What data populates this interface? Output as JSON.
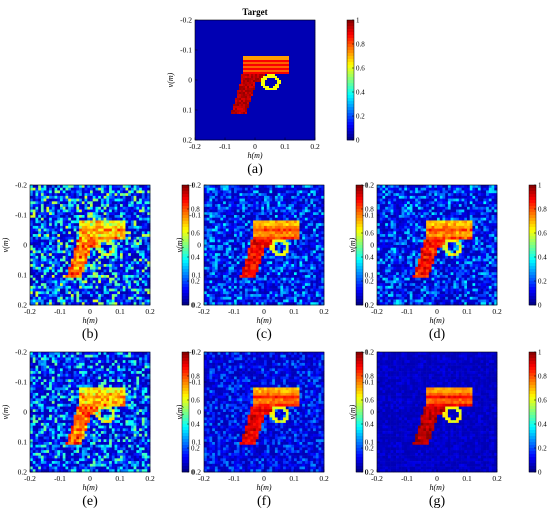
{
  "figure": {
    "panels": [
      {
        "id": "a",
        "caption": "(a)",
        "title": "Target",
        "noise": 0.0,
        "signal": 1.0,
        "clean": true
      },
      {
        "id": "b",
        "caption": "(b)",
        "title": "",
        "noise": 0.55,
        "signal": 0.55,
        "clean": false
      },
      {
        "id": "c",
        "caption": "(c)",
        "title": "",
        "noise": 0.32,
        "signal": 0.85,
        "clean": false
      },
      {
        "id": "d",
        "caption": "(d)",
        "title": "",
        "noise": 0.32,
        "signal": 0.8,
        "clean": false
      },
      {
        "id": "e",
        "caption": "(e)",
        "title": "",
        "noise": 0.45,
        "signal": 0.6,
        "clean": false
      },
      {
        "id": "f",
        "caption": "(f)",
        "title": "",
        "noise": 0.22,
        "signal": 0.9,
        "clean": false
      },
      {
        "id": "g",
        "caption": "(g)",
        "title": "",
        "noise": 0.06,
        "signal": 1.0,
        "clean": false
      }
    ]
  },
  "chart_data": {
    "type": "heatmap",
    "panel_count": 7,
    "xlabel": "h(m)",
    "ylabel": "v(m)",
    "xlim": [
      -0.2,
      0.2
    ],
    "ylim": [
      -0.2,
      0.2
    ],
    "x_ticks": [
      "-0.2",
      "-0.1",
      "0",
      "0.1",
      "0.2"
    ],
    "y_ticks": [
      "-0.2",
      "-0.1",
      "0",
      "0.1",
      "0.2"
    ],
    "colorbar": {
      "range": [
        0,
        1
      ],
      "ticks": [
        "0",
        "0.2",
        "0.4",
        "0.6",
        "0.8",
        "1"
      ],
      "colormap": "jet"
    },
    "background_value": 0.05,
    "subject": "handgun silhouette"
  }
}
